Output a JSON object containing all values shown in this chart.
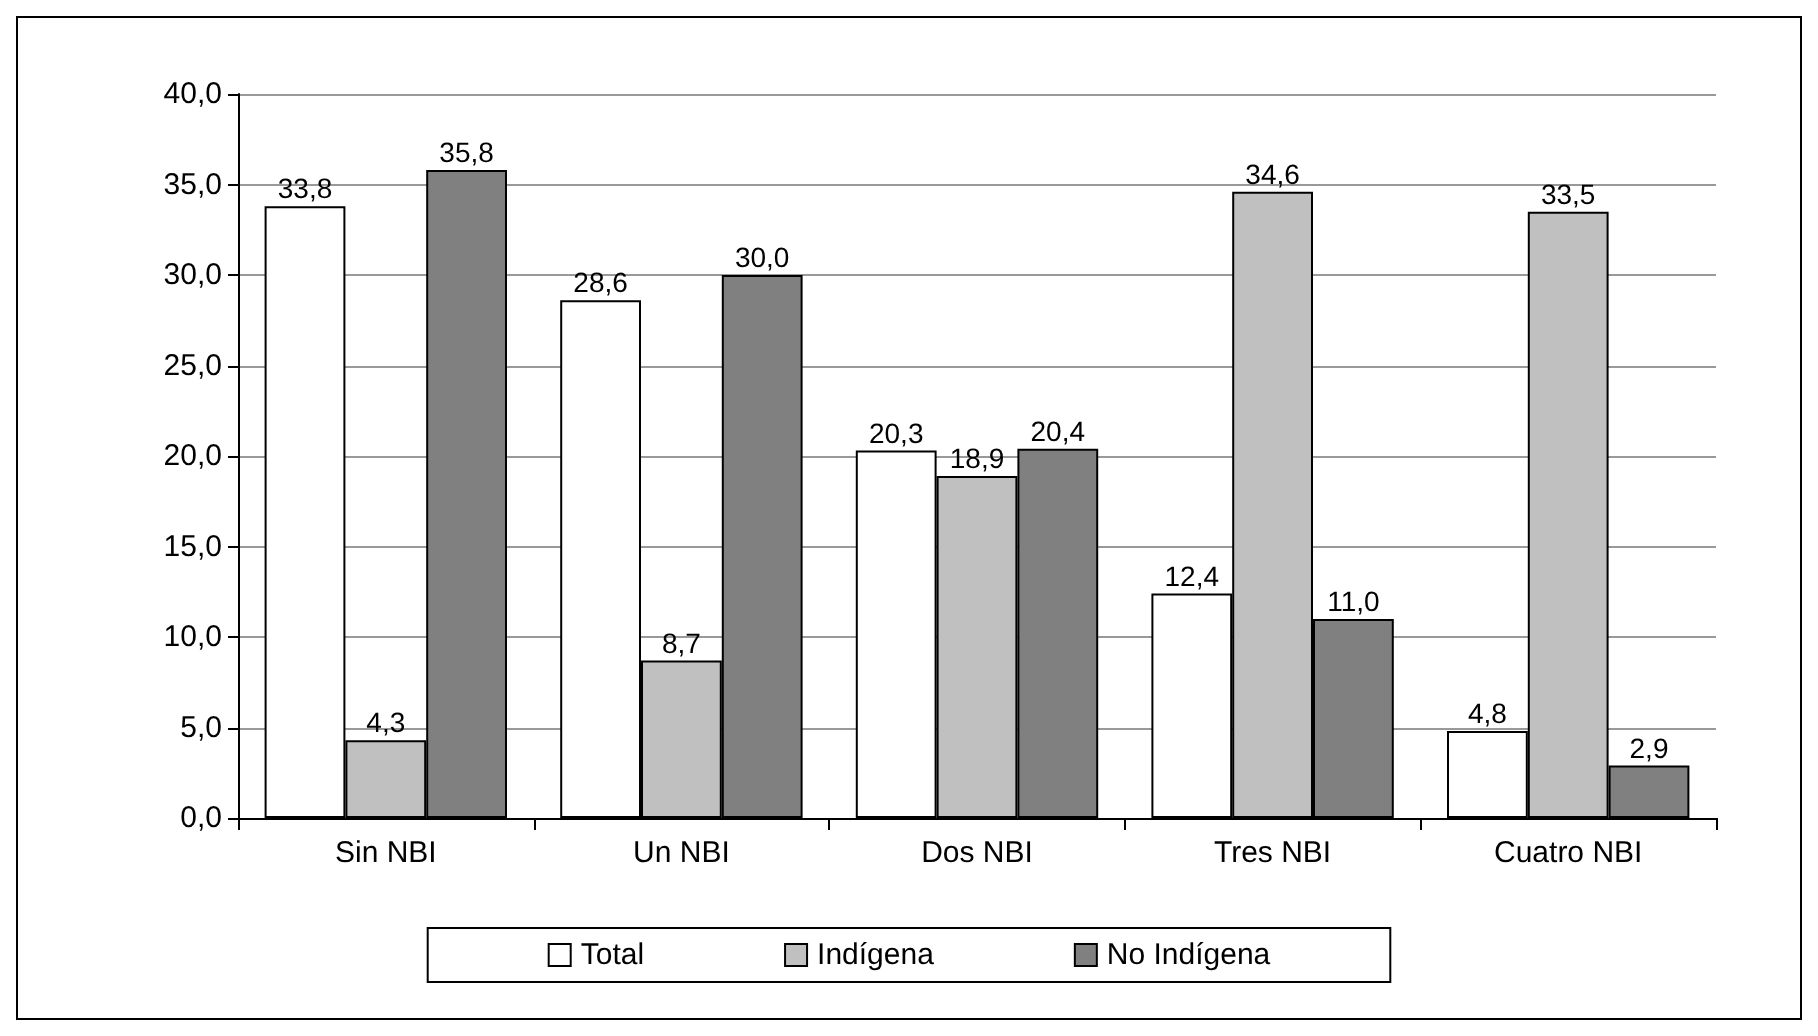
{
  "chart_data": {
    "type": "bar",
    "categories": [
      "Sin NBI",
      "Un NBI",
      "Dos NBI",
      "Tres NBI",
      "Cuatro NBI"
    ],
    "series": [
      {
        "name": "Total",
        "color": "#ffffff",
        "values": [
          33.8,
          28.6,
          20.3,
          12.4,
          4.8
        ],
        "value_labels": [
          "33,8",
          "28,6",
          "20,3",
          "12,4",
          "4,8"
        ]
      },
      {
        "name": "Indígena",
        "color": "#c0c0c0",
        "values": [
          4.3,
          8.7,
          18.9,
          34.6,
          33.5
        ],
        "value_labels": [
          "4,3",
          "8,7",
          "18,9",
          "34,6",
          "33,5"
        ]
      },
      {
        "name": "No Indígena",
        "color": "#808080",
        "values": [
          35.8,
          30.0,
          20.4,
          11.0,
          2.9
        ],
        "value_labels": [
          "35,8",
          "30,0",
          "20,4",
          "11,0",
          "2,9"
        ]
      }
    ],
    "ylim": [
      0,
      40
    ],
    "yticks": [
      {
        "value": 0,
        "label": "0,0"
      },
      {
        "value": 5,
        "label": "5,0"
      },
      {
        "value": 10,
        "label": "10,0"
      },
      {
        "value": 15,
        "label": "15,0"
      },
      {
        "value": 20,
        "label": "20,0"
      },
      {
        "value": 25,
        "label": "25,0"
      },
      {
        "value": 30,
        "label": "30,0"
      },
      {
        "value": 35,
        "label": "35,0"
      },
      {
        "value": 40,
        "label": "40,0"
      }
    ],
    "grid": "y",
    "legend": "bottom"
  }
}
